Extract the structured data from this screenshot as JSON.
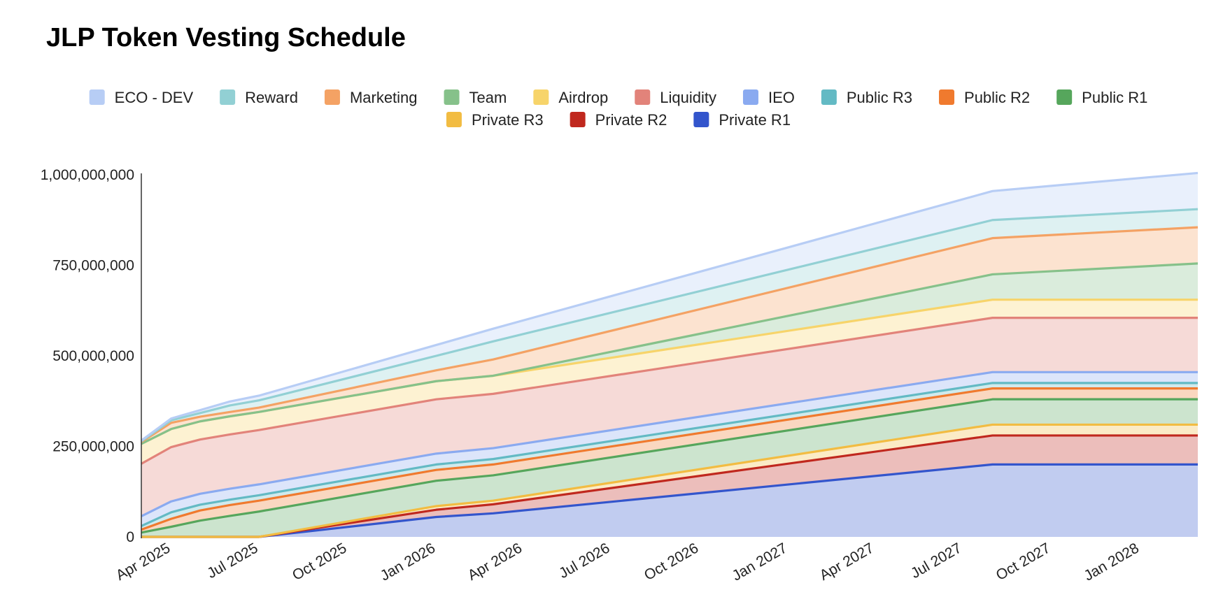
{
  "chart_data": {
    "type": "area",
    "stacked": true,
    "title": "JLP Token Vesting Schedule",
    "xlabel": "",
    "ylabel": "",
    "ylim": [
      0,
      1000000000
    ],
    "x_range": [
      "2025-03-01",
      "2028-03-01"
    ],
    "y_ticks": [
      {
        "value": 0,
        "label": "0"
      },
      {
        "value": 250000000,
        "label": "250,000,000"
      },
      {
        "value": 500000000,
        "label": "500,000,000"
      },
      {
        "value": 750000000,
        "label": "750,000,000"
      },
      {
        "value": 1000000000,
        "label": "1,000,000,000"
      }
    ],
    "x_ticks": [
      {
        "date": "2025-04-01",
        "label": "Apr 2025"
      },
      {
        "date": "2025-07-01",
        "label": "Jul 2025"
      },
      {
        "date": "2025-10-01",
        "label": "Oct 2025"
      },
      {
        "date": "2026-01-01",
        "label": "Jan 2026"
      },
      {
        "date": "2026-04-01",
        "label": "Apr 2026"
      },
      {
        "date": "2026-07-01",
        "label": "Jul 2026"
      },
      {
        "date": "2026-10-01",
        "label": "Oct 2026"
      },
      {
        "date": "2027-01-01",
        "label": "Jan 2027"
      },
      {
        "date": "2027-04-01",
        "label": "Apr 2027"
      },
      {
        "date": "2027-07-01",
        "label": "Jul 2027"
      },
      {
        "date": "2027-10-01",
        "label": "Oct 2027"
      },
      {
        "date": "2028-01-01",
        "label": "Jan 2028"
      }
    ],
    "legend_position": "top",
    "grid": false,
    "x": [
      "2025-03-01",
      "2025-04-01",
      "2025-05-01",
      "2025-06-01",
      "2025-07-01",
      "2026-01-01",
      "2026-03-01",
      "2027-08-01",
      "2028-03-01"
    ],
    "series": [
      {
        "name": "Private R1",
        "color": "#3355cc",
        "values": [
          0,
          0,
          0,
          0,
          0,
          55000000,
          65000000,
          200000000,
          200000000
        ]
      },
      {
        "name": "Private R2",
        "color": "#c0281e",
        "values": [
          0,
          0,
          0,
          0,
          0,
          20000000,
          25000000,
          80000000,
          80000000
        ]
      },
      {
        "name": "Private R3",
        "color": "#f2bc42",
        "values": [
          0,
          0,
          0,
          0,
          0,
          10000000,
          10000000,
          30000000,
          30000000
        ]
      },
      {
        "name": "Public R1",
        "color": "#56a65c",
        "values": [
          12000000,
          28000000,
          45000000,
          58000000,
          70000000,
          70000000,
          70000000,
          70000000,
          70000000
        ]
      },
      {
        "name": "Public R2",
        "color": "#f07a2e",
        "values": [
          8000000,
          22000000,
          28000000,
          30000000,
          30000000,
          30000000,
          30000000,
          30000000,
          30000000
        ]
      },
      {
        "name": "Public R3",
        "color": "#63bac4",
        "values": [
          10000000,
          18000000,
          16000000,
          15000000,
          15000000,
          15000000,
          15000000,
          15000000,
          15000000
        ]
      },
      {
        "name": "IEO",
        "color": "#8aaaf0",
        "values": [
          27000000,
          30000000,
          30000000,
          30000000,
          30000000,
          30000000,
          30000000,
          30000000,
          30000000
        ]
      },
      {
        "name": "Liquidity",
        "color": "#e2837a",
        "values": [
          145000000,
          150000000,
          150000000,
          150000000,
          150000000,
          150000000,
          150000000,
          150000000,
          150000000
        ]
      },
      {
        "name": "Airdrop",
        "color": "#f7d46a",
        "values": [
          55000000,
          50000000,
          50000000,
          50000000,
          50000000,
          50000000,
          50000000,
          50000000,
          50000000
        ]
      },
      {
        "name": "Team",
        "color": "#86c18a",
        "values": [
          0,
          0,
          0,
          0,
          0,
          0,
          0,
          70000000,
          100000000
        ]
      },
      {
        "name": "Marketing",
        "color": "#f4a264",
        "values": [
          5000000,
          17000000,
          13000000,
          12000000,
          12000000,
          30000000,
          45000000,
          100000000,
          100000000
        ]
      },
      {
        "name": "Reward",
        "color": "#92d0d4",
        "values": [
          2000000,
          7000000,
          10000000,
          18000000,
          20000000,
          40000000,
          50000000,
          50000000,
          50000000
        ]
      },
      {
        "name": "ECO - DEV",
        "color": "#b7cdf5",
        "values": [
          2000000,
          5000000,
          8000000,
          11000000,
          13000000,
          30000000,
          35000000,
          80000000,
          100000000
        ]
      }
    ],
    "legend": [
      "ECO - DEV",
      "Reward",
      "Marketing",
      "Team",
      "Airdrop",
      "Liquidity",
      "IEO",
      "Public R3",
      "Public R2",
      "Public R1",
      "Private R3",
      "Private R2",
      "Private R1"
    ]
  }
}
